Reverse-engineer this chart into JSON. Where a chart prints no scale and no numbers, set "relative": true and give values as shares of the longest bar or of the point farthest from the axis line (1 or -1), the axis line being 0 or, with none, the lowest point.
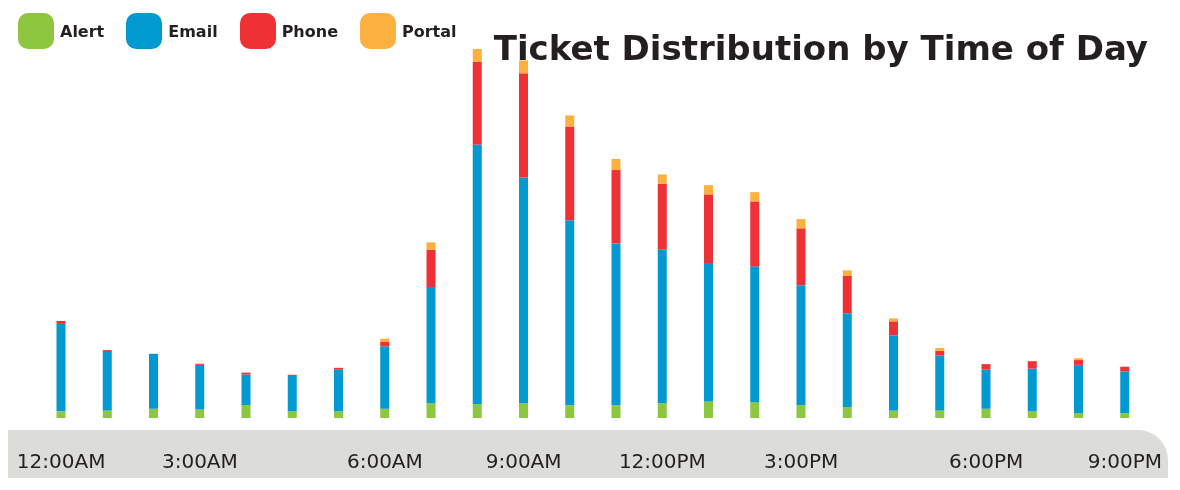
{
  "chart_data": {
    "type": "bar",
    "title": "Ticket Distribution by Time of Day",
    "relative": true,
    "stacked": true,
    "legend": "top left",
    "grid": false,
    "categories": [
      "12:00AM",
      null,
      null,
      "3:00AM",
      null,
      null,
      null,
      "6:00AM",
      null,
      null,
      "9:00AM",
      null,
      null,
      "12:00PM",
      null,
      null,
      "3:00PM",
      null,
      null,
      null,
      "6:00PM",
      null,
      null,
      "9:00PM"
    ],
    "series": [
      {
        "name": "Alert",
        "color": "#8dc63f",
        "values": [
          0.018,
          0.02,
          0.025,
          0.023,
          0.035,
          0.018,
          0.018,
          0.025,
          0.04,
          0.038,
          0.04,
          0.035,
          0.035,
          0.04,
          0.045,
          0.043,
          0.035,
          0.03,
          0.02,
          0.02,
          0.025,
          0.018,
          0.013,
          0.013
        ]
      },
      {
        "name": "Email",
        "color": "#009ad0",
        "values": [
          0.237,
          0.159,
          0.149,
          0.121,
          0.083,
          0.096,
          0.113,
          0.169,
          0.315,
          0.703,
          0.612,
          0.501,
          0.438,
          0.416,
          0.375,
          0.368,
          0.325,
          0.254,
          0.204,
          0.149,
          0.106,
          0.116,
          0.131,
          0.113
        ]
      },
      {
        "name": "Phone",
        "color": "#ef3034",
        "values": [
          0.008,
          0.005,
          0,
          0.003,
          0.005,
          0.003,
          0.005,
          0.013,
          0.101,
          0.224,
          0.282,
          0.254,
          0.199,
          0.179,
          0.186,
          0.176,
          0.154,
          0.101,
          0.038,
          0.013,
          0.015,
          0.02,
          0.013,
          0.013
        ]
      },
      {
        "name": "Portal",
        "color": "#fbb040",
        "values": [
          0,
          0,
          0,
          0,
          0,
          0,
          0,
          0.008,
          0.02,
          0.035,
          0.035,
          0.03,
          0.03,
          0.025,
          0.025,
          0.025,
          0.025,
          0.015,
          0.008,
          0.008,
          0,
          0,
          0.005,
          0
        ]
      }
    ]
  }
}
